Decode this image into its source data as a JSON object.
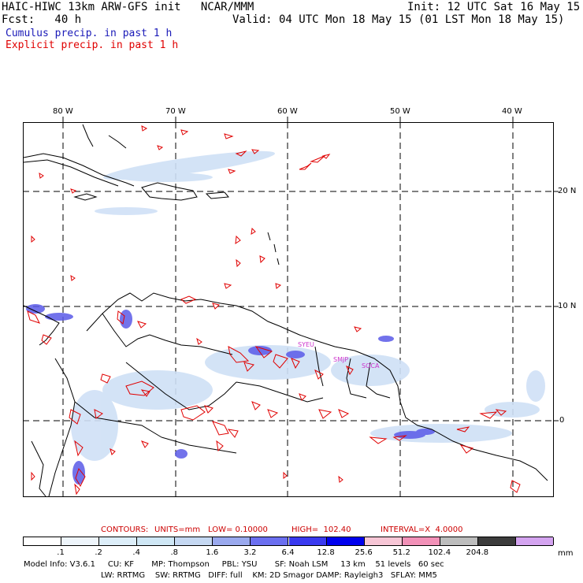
{
  "header": {
    "model_title": "HAIC-HIWC 13km ARW-GFS init   NCAR/MMM",
    "init_time": "Init: 12 UTC Sat 16 May 15",
    "forecast": "Fcst:   40 h",
    "valid_time": "Valid: 04 UTC Mon 18 May 15 (01 LST Mon 18 May 15)",
    "legend_cumulus": "Cumulus precip. in past 1 h",
    "legend_explicit": "Explicit precip. in past 1 h"
  },
  "colors": {
    "cumulus": "#1a1ab8",
    "explicit": "#e00000",
    "contour_info": "#cc0000",
    "station": "#cc33cc"
  },
  "map": {
    "lon_labels": [
      "80 W",
      "70 W",
      "60 W",
      "50 W",
      "40 W"
    ],
    "lat_labels": [
      "20 N",
      "10 N",
      "0"
    ],
    "stations": [
      "SYEU",
      "SMJP",
      "SOCA"
    ]
  },
  "contours": {
    "label": "CONTOURS:",
    "units": "UNITS=mm",
    "low": "LOW= 0.10000",
    "high": "HIGH=  102.40",
    "interval": "INTERVAL=X  4.0000"
  },
  "colorbar": {
    "unit": "mm",
    "labels": [
      ".1",
      ".2",
      ".4",
      ".8",
      "1.6",
      "3.2",
      "6.4",
      "12.8",
      "25.6",
      "51.2",
      "102.4",
      "204.8"
    ],
    "colors": [
      "#ffffff",
      "#eef5fb",
      "#ddeef9",
      "#cfe7f5",
      "#c5d8f2",
      "#9aa9ee",
      "#6b6ff0",
      "#3a3af0",
      "#0000ee",
      "#f7c6d6",
      "#f291b8",
      "#bdbdbd",
      "#3c3c3c",
      "#d4a4f0"
    ]
  },
  "footer": {
    "line1": "Model Info: V3.6.1     CU: KF       MP: Thompson     PBL: YSU       SF: Noah LSM     13 km    51 levels   60 sec",
    "line2": "LW: RRTMG    SW: RRTMG   DIFF: full    KM: 2D Smagor DAMP: Rayleigh3   SFLAY: MM5"
  }
}
